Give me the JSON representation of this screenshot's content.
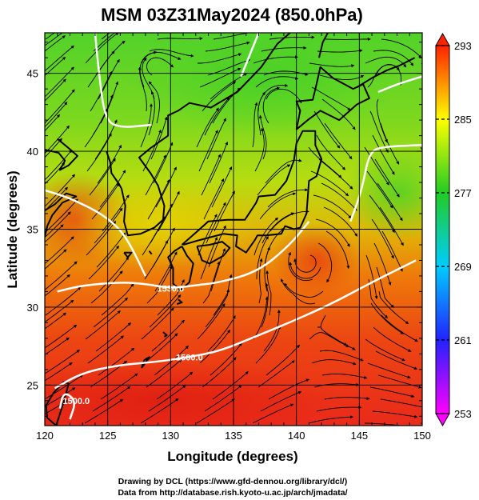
{
  "chart_data": {
    "type": "heatmap",
    "title": "MSM 03Z31May2024 (850.0hPa)",
    "xlabel": "Longitude (degrees)",
    "ylabel": "Latitude  (degrees)",
    "xlim": [
      120,
      150
    ],
    "ylim": [
      22.4,
      47.6
    ],
    "xticks": [
      120,
      125,
      130,
      135,
      140,
      145,
      150
    ],
    "yticks": [
      25,
      30,
      35,
      40,
      45
    ],
    "grid": true,
    "field": "temperature",
    "colorbar": {
      "ticks": [
        253,
        261,
        269,
        277,
        285,
        293
      ],
      "vmin": 253,
      "vmax": 293,
      "extend": "both",
      "colors": [
        "#ff00ff",
        "#2222ff",
        "#00ccff",
        "#22cc22",
        "#ffff00",
        "#ff2200"
      ]
    },
    "contours": [
      {
        "label": "1500.0",
        "points": [
          [
            120.8,
            24.8
          ],
          [
            123,
            25.8
          ],
          [
            126,
            26.3
          ],
          [
            129,
            26.5
          ],
          [
            131.5,
            26.8
          ],
          [
            134,
            27.2
          ],
          [
            137,
            28.2
          ],
          [
            140,
            29.2
          ],
          [
            143,
            30.3
          ],
          [
            146,
            31.6
          ],
          [
            149.5,
            33
          ]
        ]
      },
      {
        "label": "1530.0",
        "points": [
          [
            121,
            31
          ],
          [
            123,
            31.4
          ],
          [
            126,
            31.6
          ],
          [
            128,
            31.5
          ],
          [
            130,
            31.2
          ],
          [
            132,
            31.4
          ],
          [
            134,
            31.6
          ],
          [
            137,
            32.3
          ],
          [
            139.5,
            34
          ],
          [
            141,
            35.5
          ]
        ]
      },
      {
        "label": "1500.0",
        "points": [
          [
            122,
            22.8
          ],
          [
            122.5,
            24
          ],
          [
            121.5,
            24.6
          ],
          [
            121.2,
            23.5
          ]
        ]
      },
      {
        "label": "",
        "points": [
          [
            120,
            37.5
          ],
          [
            122,
            37
          ],
          [
            124.5,
            36
          ],
          [
            126,
            35
          ],
          [
            127,
            33.7
          ],
          [
            128,
            32
          ]
        ]
      },
      {
        "label": "",
        "points": [
          [
            124,
            47.6
          ],
          [
            124.3,
            45
          ],
          [
            124.8,
            42
          ],
          [
            126,
            41.5
          ],
          [
            128.5,
            41.7
          ]
        ]
      },
      {
        "label": "",
        "points": [
          [
            137,
            47.6
          ],
          [
            136.2,
            46
          ],
          [
            135.6,
            44.8
          ]
        ]
      },
      {
        "label": "",
        "points": [
          [
            150,
            40.4
          ],
          [
            147,
            40.3
          ],
          [
            145.8,
            40
          ],
          [
            145.2,
            37.5
          ],
          [
            144.3,
            35.5
          ]
        ]
      },
      {
        "label": "",
        "points": [
          [
            146.5,
            43.8
          ],
          [
            148,
            44.3
          ],
          [
            150,
            44.8
          ]
        ]
      }
    ],
    "map": {
      "projection": "equirectangular",
      "overlay": "coastlines",
      "region": "East Asia / Japan"
    },
    "streamlines": "850hPa wind"
  },
  "credits": {
    "line1": "Drawing by DCL (https://www.gfd-dennou.org/library/dcl/)",
    "line2": "Data from http://database.rish.kyoto-u.ac.jp/arch/jmadata/"
  }
}
